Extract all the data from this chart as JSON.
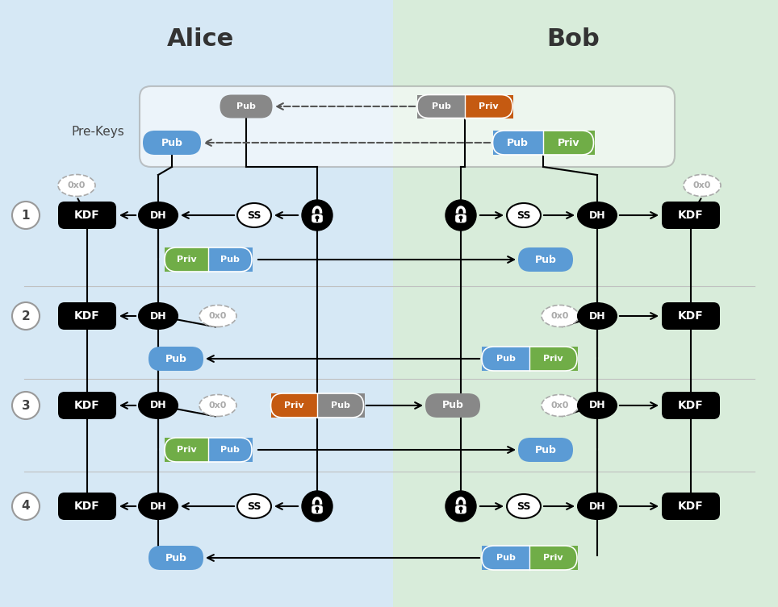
{
  "title_alice": "Alice",
  "title_bob": "Bob",
  "label_prekeys": "Pre-Keys",
  "alice_bg": "#d6e8f5",
  "bob_bg": "#d8ecda",
  "color_pub_blue": "#5b9bd5",
  "color_priv_green": "#70ad47",
  "color_priv_orange": "#c55a11",
  "color_pub_gray": "#888888",
  "color_black": "#111111",
  "color_row_line": "#c0c0c0",
  "row_labels": [
    "1",
    "2",
    "3",
    "4"
  ],
  "fig_w": 9.64,
  "fig_h": 7.53,
  "dpi": 100
}
